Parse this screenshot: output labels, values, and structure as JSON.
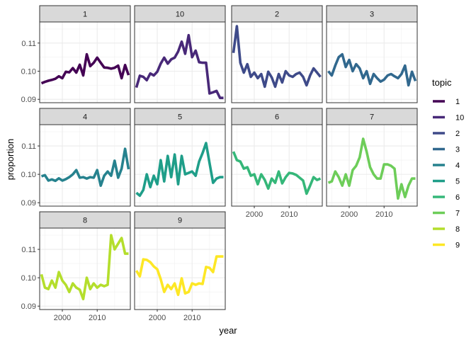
{
  "chart_data": {
    "type": "line",
    "facet_by": "topic",
    "xlabel": "year",
    "ylabel": "proportion",
    "x_ticks": [
      2000,
      2010
    ],
    "x_tick_labels": [
      "2000",
      "2010"
    ],
    "y_ticks": [
      0.09,
      0.1,
      0.11
    ],
    "y_tick_labels": [
      "0.09",
      "0.10",
      "0.11"
    ],
    "xlim": [
      1993.5,
      2019.5
    ],
    "ylim": [
      0.0888,
      0.1175
    ],
    "grid": true,
    "legend": {
      "title": "topic",
      "placement": "right",
      "entries": [
        "1",
        "10",
        "2",
        "3",
        "4",
        "5",
        "6",
        "7",
        "8",
        "9"
      ]
    },
    "colors": {
      "1": "#440154",
      "10": "#482878",
      "2": "#3E4A89",
      "3": "#31688E",
      "4": "#26828E",
      "5": "#1F9E89",
      "6": "#35B779",
      "7": "#6DCD59",
      "8": "#B4DE2C",
      "9": "#FDE725"
    },
    "facets": [
      {
        "label": "1",
        "years": [
          1994,
          1995,
          1996,
          1997,
          1998,
          1999,
          2000,
          2001,
          2002,
          2003,
          2004,
          2005,
          2006,
          2007,
          2008,
          2009,
          2010,
          2011,
          2012,
          2013,
          2014,
          2015,
          2016,
          2017,
          2018,
          2019
        ],
        "values": [
          0.0957,
          0.0962,
          0.0966,
          0.0969,
          0.0973,
          0.0982,
          0.0975,
          0.0998,
          0.0996,
          0.1011,
          0.0995,
          0.1023,
          0.0985,
          0.106,
          0.1018,
          0.103,
          0.1048,
          0.103,
          0.1013,
          0.1012,
          0.1009,
          0.1012,
          0.102,
          0.0975,
          0.1022,
          0.0986
        ]
      },
      {
        "label": "10",
        "years": [
          1994,
          1995,
          1996,
          1997,
          1998,
          1999,
          2000,
          2001,
          2002,
          2003,
          2004,
          2005,
          2006,
          2007,
          2008,
          2009,
          2010,
          2011,
          2012,
          2013,
          2014,
          2015,
          2016,
          2017,
          2018,
          2019
        ],
        "values": [
          0.0942,
          0.0984,
          0.098,
          0.0968,
          0.0992,
          0.0985,
          0.0998,
          0.1027,
          0.1048,
          0.1027,
          0.1042,
          0.1048,
          0.107,
          0.1105,
          0.1062,
          0.1128,
          0.105,
          0.1073,
          0.1032,
          0.103,
          0.103,
          0.0921,
          0.0925,
          0.093,
          0.0905,
          0.0905
        ]
      },
      {
        "label": "2",
        "years": [
          1994,
          1995,
          1996,
          1997,
          1998,
          1999,
          2000,
          2001,
          2002,
          2003,
          2004,
          2005,
          2006,
          2007,
          2008,
          2009,
          2010,
          2011,
          2012,
          2013,
          2014,
          2015,
          2016,
          2017,
          2018,
          2019
        ],
        "values": [
          0.1065,
          0.116,
          0.103,
          0.0995,
          0.1025,
          0.098,
          0.0995,
          0.0975,
          0.099,
          0.0945,
          0.0998,
          0.0978,
          0.0945,
          0.099,
          0.096,
          0.1,
          0.0985,
          0.098,
          0.099,
          0.0995,
          0.098,
          0.095,
          0.0985,
          0.101,
          0.0995,
          0.098
        ]
      },
      {
        "label": "3",
        "years": [
          1994,
          1995,
          1996,
          1997,
          1998,
          1999,
          2000,
          2001,
          2002,
          2003,
          2004,
          2005,
          2006,
          2007,
          2008,
          2009,
          2010,
          2011,
          2012,
          2013,
          2014,
          2015,
          2016,
          2017,
          2018,
          2019
        ],
        "values": [
          0.1,
          0.0985,
          0.102,
          0.105,
          0.106,
          0.1015,
          0.104,
          0.1,
          0.1025,
          0.101,
          0.0975,
          0.1,
          0.0955,
          0.099,
          0.0975,
          0.0963,
          0.097,
          0.0985,
          0.099,
          0.0982,
          0.0975,
          0.099,
          0.102,
          0.095,
          0.0998,
          0.0965
        ]
      },
      {
        "label": "4",
        "years": [
          1994,
          1995,
          1996,
          1997,
          1998,
          1999,
          2000,
          2001,
          2002,
          2003,
          2004,
          2005,
          2006,
          2007,
          2008,
          2009,
          2010,
          2011,
          2012,
          2013,
          2014,
          2015,
          2016,
          2017,
          2018,
          2019
        ],
        "values": [
          0.0993,
          0.0997,
          0.0978,
          0.0982,
          0.0977,
          0.0986,
          0.0978,
          0.0983,
          0.099,
          0.1,
          0.1015,
          0.0988,
          0.099,
          0.0985,
          0.099,
          0.0988,
          0.1015,
          0.096,
          0.0995,
          0.101,
          0.0995,
          0.1048,
          0.0988,
          0.102,
          0.109,
          0.1018
        ]
      },
      {
        "label": "5",
        "years": [
          1994,
          1995,
          1996,
          1997,
          1998,
          1999,
          2000,
          2001,
          2002,
          2003,
          2004,
          2005,
          2006,
          2007,
          2008,
          2009,
          2010,
          2011,
          2012,
          2013,
          2014,
          2015,
          2016,
          2017,
          2018,
          2019
        ],
        "values": [
          0.0935,
          0.0925,
          0.0945,
          0.1,
          0.0955,
          0.0995,
          0.0965,
          0.105,
          0.0975,
          0.1065,
          0.099,
          0.107,
          0.0965,
          0.1065,
          0.1,
          0.1005,
          0.101,
          0.0995,
          0.1045,
          0.1075,
          0.111,
          0.104,
          0.097,
          0.0985,
          0.099,
          0.099
        ]
      },
      {
        "label": "6",
        "years": [
          1994,
          1995,
          1996,
          1997,
          1998,
          1999,
          2000,
          2001,
          2002,
          2003,
          2004,
          2005,
          2006,
          2007,
          2008,
          2009,
          2010,
          2011,
          2012,
          2013,
          2014,
          2015,
          2016,
          2017,
          2018,
          2019
        ],
        "values": [
          0.108,
          0.105,
          0.1045,
          0.102,
          0.1025,
          0.0995,
          0.1,
          0.0965,
          0.1,
          0.098,
          0.095,
          0.0985,
          0.097,
          0.101,
          0.0968,
          0.099,
          0.1005,
          0.1003,
          0.0998,
          0.0988,
          0.0978,
          0.0932,
          0.096,
          0.099,
          0.098,
          0.0985
        ]
      },
      {
        "label": "7",
        "years": [
          1994,
          1995,
          1996,
          1997,
          1998,
          1999,
          2000,
          2001,
          2002,
          2003,
          2004,
          2005,
          2006,
          2007,
          2008,
          2009,
          2010,
          2011,
          2012,
          2013,
          2014,
          2015,
          2016,
          2017,
          2018,
          2019
        ],
        "values": [
          0.097,
          0.0975,
          0.101,
          0.099,
          0.096,
          0.1,
          0.096,
          0.1015,
          0.103,
          0.106,
          0.1125,
          0.108,
          0.1025,
          0.1,
          0.0985,
          0.0985,
          0.1035,
          0.1035,
          0.103,
          0.102,
          0.0915,
          0.0965,
          0.092,
          0.096,
          0.0985,
          0.0985
        ]
      },
      {
        "label": "8",
        "years": [
          1994,
          1995,
          1996,
          1997,
          1998,
          1999,
          2000,
          2001,
          2002,
          2003,
          2004,
          2005,
          2006,
          2007,
          2008,
          2009,
          2010,
          2011,
          2012,
          2013,
          2014,
          2015,
          2016,
          2017,
          2018,
          2019
        ],
        "values": [
          0.1012,
          0.0965,
          0.096,
          0.099,
          0.0965,
          0.102,
          0.099,
          0.0975,
          0.095,
          0.098,
          0.0965,
          0.0958,
          0.0925,
          0.1,
          0.096,
          0.098,
          0.0965,
          0.0975,
          0.097,
          0.0975,
          0.115,
          0.11,
          0.112,
          0.114,
          0.1085,
          0.1085
        ]
      },
      {
        "label": "9",
        "years": [
          1994,
          1995,
          1996,
          1997,
          1998,
          1999,
          2000,
          2001,
          2002,
          2003,
          2004,
          2005,
          2006,
          2007,
          2008,
          2009,
          2010,
          2011,
          2012,
          2013,
          2014,
          2015,
          2016,
          2017,
          2018,
          2019
        ],
        "values": [
          0.1025,
          0.1005,
          0.1065,
          0.1063,
          0.1055,
          0.104,
          0.103,
          0.0995,
          0.095,
          0.0975,
          0.096,
          0.098,
          0.094,
          0.0998,
          0.0945,
          0.095,
          0.098,
          0.0975,
          0.098,
          0.0978,
          0.1038,
          0.1035,
          0.102,
          0.1075,
          0.1075,
          0.1075
        ]
      }
    ]
  }
}
